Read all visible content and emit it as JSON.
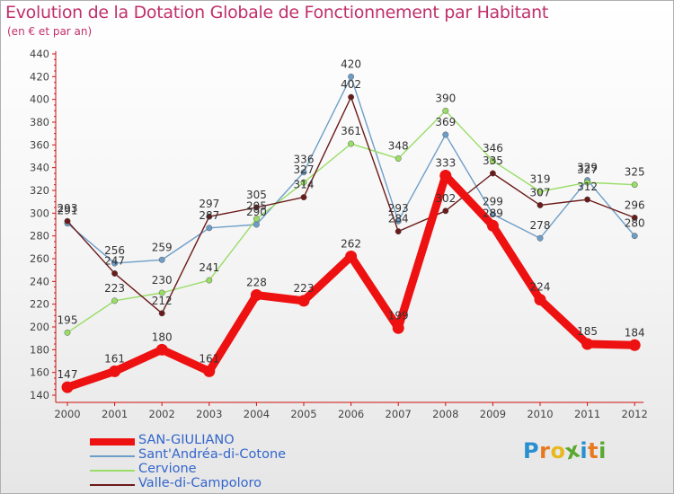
{
  "chart_data": {
    "type": "line",
    "title": "Evolution de la Dotation Globale de Fonctionnement par Habitant",
    "subtitle": "(en € et par an)",
    "categories": [
      "2000",
      "2001",
      "2002",
      "2003",
      "2004",
      "2005",
      "2006",
      "2007",
      "2008",
      "2009",
      "2010",
      "2011",
      "2012"
    ],
    "ylim": [
      140,
      440
    ],
    "yticks": [
      140,
      160,
      180,
      200,
      220,
      240,
      260,
      280,
      300,
      320,
      340,
      360,
      380,
      400,
      420,
      440
    ],
    "grid": false,
    "series": [
      {
        "name": "SAN-GIULIANO",
        "color": "#ee1111",
        "values": [
          147,
          161,
          180,
          161,
          228,
          223,
          262,
          199,
          333,
          289,
          224,
          185,
          184
        ]
      },
      {
        "name": "Sant'Andréa-di-Cotone",
        "color": "#6e9ec8",
        "values": [
          291,
          256,
          259,
          287,
          290,
          336,
          420,
          293,
          369,
          299,
          278,
          329,
          280
        ]
      },
      {
        "name": "Cervione",
        "color": "#99dd66",
        "values": [
          195,
          223,
          230,
          241,
          295,
          327,
          361,
          348,
          390,
          346,
          319,
          327,
          325
        ]
      },
      {
        "name": "Valle-di-Campoloro",
        "color": "#6b1a1a",
        "values": [
          293,
          247,
          212,
          297,
          305,
          314,
          402,
          284,
          302,
          335,
          307,
          312,
          296
        ]
      }
    ]
  },
  "legend": {
    "placement": "bottom-left"
  },
  "logo": {
    "text": "Proxiti",
    "colors": [
      "#2a8fd0",
      "#e8791e",
      "#e8b81e",
      "#5aa830",
      "#2a8fd0",
      "#e8791e",
      "#5aa830"
    ]
  }
}
